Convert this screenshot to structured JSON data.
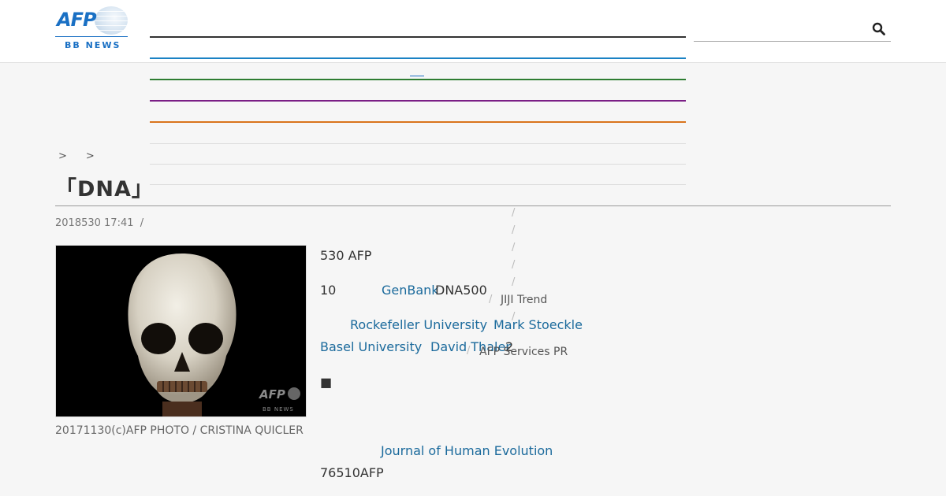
{
  "header": {
    "logo_text": "AFP",
    "logo_sub": "BB NEWS"
  },
  "breadcrumb": [
    ">",
    ">"
  ],
  "article": {
    "title": "「DNA」",
    "date": "2018530 17:41",
    "meta_sep": "/",
    "image_alt": "skull photo",
    "caption": "20171130(c)AFP PHOTO / CRISTINA QUICLER",
    "dateline": "530 AFP",
    "p2_num": "10",
    "genbank_link": "GenBank",
    "p2_tail": "DNA500",
    "rockefeller_link": "Rockefeller University",
    "stoeckle_link": "Mark Stoeckle",
    "basel_link": "Basel University",
    "thaler_link": "David Thaler",
    "p3_tail": "2",
    "section_marker": "■",
    "journal_link": "Journal of Human Evolution",
    "p_last": "76510AFP"
  },
  "sidebar": {
    "item1": "JIJI Trend",
    "item2": "AFP Services PR",
    "slash": "/"
  },
  "colors": {
    "nav_lines": [
      "#333333",
      "#1a82c4",
      "#2e7d32",
      "#7b1f86",
      "#d9741c"
    ]
  }
}
